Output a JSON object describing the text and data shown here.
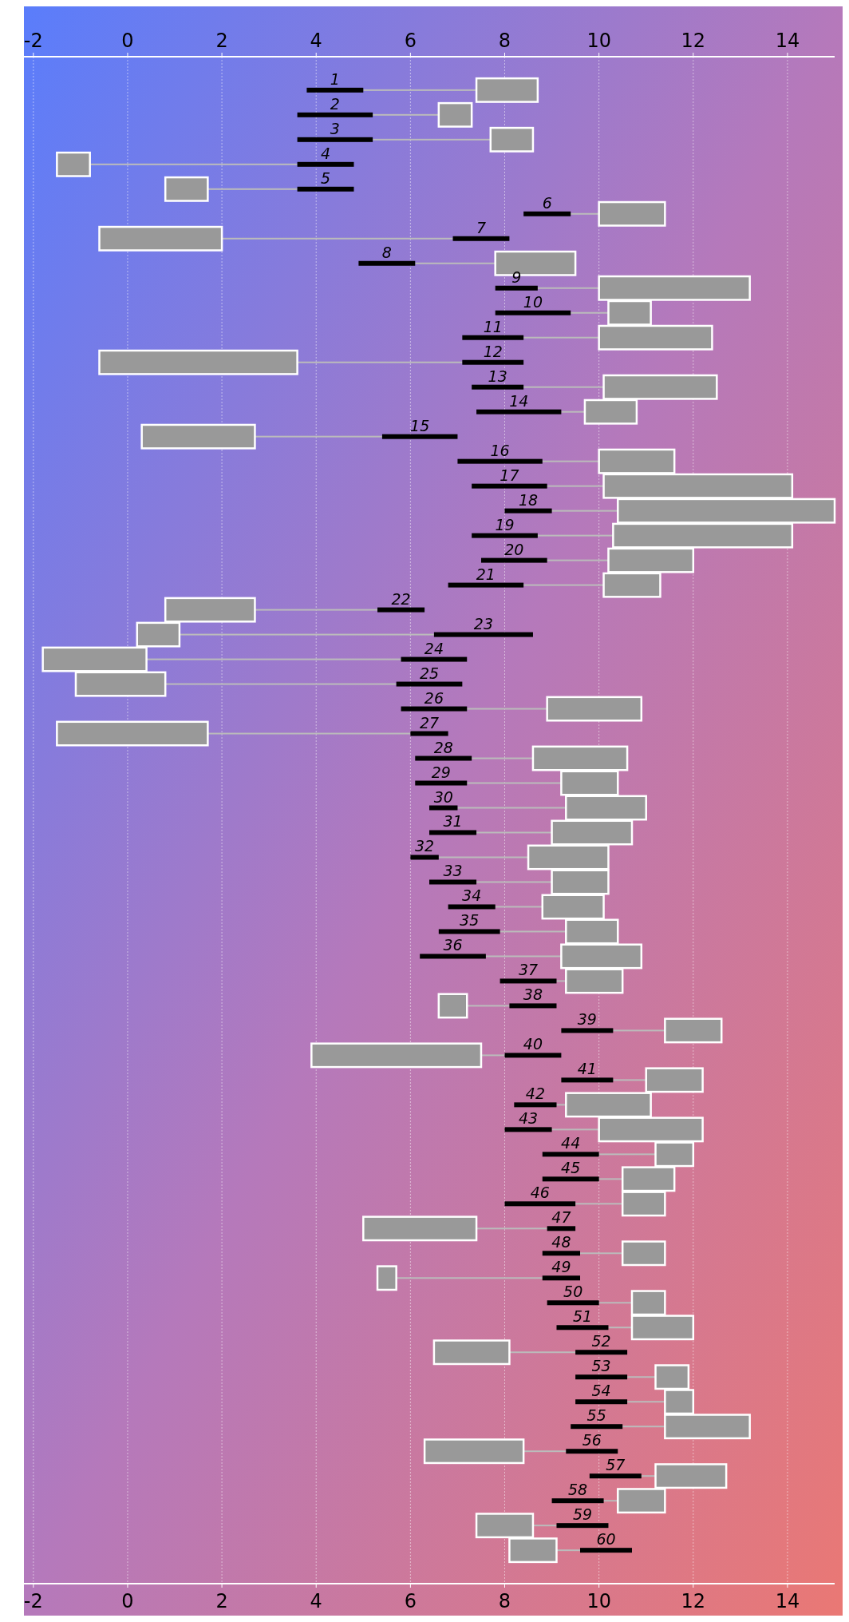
{
  "chart_data": {
    "type": "bar",
    "orientation": "horizontal",
    "grid": "x",
    "categories": [
      "1",
      "2",
      "3",
      "4",
      "5",
      "6",
      "7",
      "8",
      "9",
      "10",
      "11",
      "12",
      "13",
      "14",
      "15",
      "16",
      "17",
      "18",
      "19",
      "20",
      "21",
      "22",
      "23",
      "24",
      "25",
      "26",
      "27",
      "28",
      "29",
      "30",
      "31",
      "32",
      "33",
      "34",
      "35",
      "36",
      "37",
      "38",
      "39",
      "40",
      "41",
      "42",
      "43",
      "44",
      "45",
      "46",
      "47",
      "48",
      "49",
      "50",
      "51",
      "52",
      "53",
      "54",
      "55",
      "56",
      "57",
      "58",
      "59",
      "60"
    ],
    "xlim": [
      -2.2,
      15
    ],
    "xticks": [
      -2,
      0,
      2,
      4,
      6,
      8,
      10,
      12,
      14
    ],
    "x2lim": [
      -2.2,
      15
    ],
    "x2ticks": [
      -2,
      0,
      2,
      4,
      6,
      8,
      10,
      12,
      14
    ],
    "series": [
      {
        "color": "#bbbbbb",
        "base": [
          5.0,
          5.2,
          5.2,
          -0.8,
          1.7,
          9.4,
          2.0,
          6.1,
          8.7,
          9.4,
          8.4,
          3.6,
          8.4,
          9.2,
          2.7,
          8.8,
          8.9,
          9.0,
          8.7,
          8.9,
          8.4,
          2.7,
          1.1,
          0.4,
          0.8,
          7.2,
          1.7,
          7.3,
          7.2,
          7.0,
          7.4,
          6.6,
          7.4,
          7.8,
          7.9,
          7.6,
          9.1,
          7.2,
          10.3,
          7.5,
          10.3,
          9.1,
          9.0,
          10.0,
          10.0,
          9.5,
          7.4,
          9.6,
          5.7,
          10.0,
          10.2,
          8.1,
          10.6,
          10.6,
          10.5,
          8.4,
          10.9,
          10.1,
          8.6,
          9.1
        ],
        "values": [
          2.4,
          1.4,
          2.5,
          4.4,
          1.9,
          0.6,
          4.9,
          1.7,
          1.3,
          0.8,
          1.6,
          3.5,
          1.7,
          0.5,
          2.7,
          1.2,
          1.2,
          1.4,
          1.6,
          1.3,
          1.7,
          2.6,
          5.4,
          5.4,
          4.9,
          1.7,
          4.3,
          1.3,
          2.0,
          2.3,
          1.6,
          1.9,
          1.6,
          1.0,
          1.4,
          1.6,
          0.2,
          0.9,
          1.1,
          0.5,
          0.7,
          0.2,
          1.0,
          1.2,
          0.5,
          1.0,
          1.5,
          0.9,
          3.1,
          0.7,
          0.5,
          1.4,
          0.6,
          0.8,
          0.9,
          0.9,
          0.3,
          0.3,
          0.5,
          0.5
        ]
      },
      {
        "color": "#000000",
        "base": [
          3.8,
          3.6,
          3.6,
          3.6,
          3.6,
          8.4,
          6.9,
          4.9,
          7.8,
          7.8,
          7.1,
          7.1,
          7.3,
          7.4,
          5.4,
          7.0,
          7.3,
          8.0,
          7.3,
          7.5,
          6.8,
          5.3,
          6.5,
          5.8,
          5.7,
          5.8,
          6.0,
          6.1,
          6.1,
          6.4,
          6.4,
          6.0,
          6.4,
          6.8,
          6.6,
          6.2,
          7.9,
          8.1,
          9.2,
          8.0,
          9.2,
          8.2,
          8.0,
          8.8,
          8.8,
          8.0,
          8.9,
          8.8,
          8.8,
          8.9,
          9.1,
          9.5,
          9.5,
          9.5,
          9.4,
          9.3,
          9.8,
          9.0,
          9.1,
          9.6
        ],
        "values": [
          1.2,
          1.6,
          1.6,
          1.2,
          1.2,
          1.0,
          1.2,
          1.2,
          0.9,
          1.6,
          1.3,
          1.3,
          1.1,
          1.8,
          1.6,
          1.8,
          1.6,
          1.0,
          1.4,
          1.4,
          1.6,
          1.0,
          2.1,
          1.4,
          1.4,
          1.4,
          0.8,
          1.2,
          1.1,
          0.6,
          1.0,
          0.6,
          1.0,
          1.0,
          1.3,
          1.4,
          1.2,
          1.0,
          1.1,
          1.2,
          1.1,
          0.9,
          1.0,
          1.2,
          1.2,
          1.5,
          0.6,
          0.8,
          0.8,
          1.1,
          1.1,
          1.1,
          1.1,
          1.1,
          1.1,
          1.1,
          1.1,
          1.1,
          1.1,
          1.1
        ]
      },
      {
        "color": "#999999",
        "base": [
          7.4,
          6.6,
          7.7,
          -1.5,
          0.8,
          10.0,
          -0.6,
          7.8,
          10.0,
          10.2,
          10.0,
          -0.6,
          10.1,
          9.7,
          0.3,
          10.0,
          10.1,
          10.4,
          10.3,
          10.2,
          10.1,
          0.8,
          0.2,
          -1.8,
          -1.1,
          8.9,
          -1.5,
          8.6,
          9.2,
          9.3,
          9.0,
          8.5,
          9.0,
          8.8,
          9.3,
          9.2,
          9.3,
          6.6,
          11.4,
          3.9,
          11.0,
          9.3,
          10.0,
          11.2,
          10.5,
          10.5,
          5.0,
          10.5,
          5.3,
          10.7,
          10.7,
          6.5,
          11.2,
          11.4,
          11.4,
          6.3,
          11.2,
          10.4,
          7.4,
          8.1
        ],
        "values": [
          1.3,
          0.7,
          0.9,
          0.7,
          0.9,
          1.4,
          2.6,
          1.7,
          3.2,
          0.9,
          2.4,
          4.2,
          2.4,
          1.1,
          2.4,
          1.6,
          4.0,
          4.6,
          3.8,
          1.8,
          1.2,
          1.9,
          0.9,
          2.2,
          1.9,
          2.0,
          3.2,
          2.0,
          1.2,
          1.7,
          1.7,
          1.7,
          1.2,
          1.3,
          1.1,
          1.7,
          1.2,
          0.6,
          1.2,
          3.6,
          1.2,
          1.8,
          2.2,
          0.8,
          1.1,
          0.9,
          2.4,
          0.9,
          0.4,
          0.7,
          1.3,
          1.6,
          0.7,
          0.6,
          1.8,
          2.1,
          1.5,
          1.0,
          1.2,
          1.0
        ]
      }
    ]
  }
}
